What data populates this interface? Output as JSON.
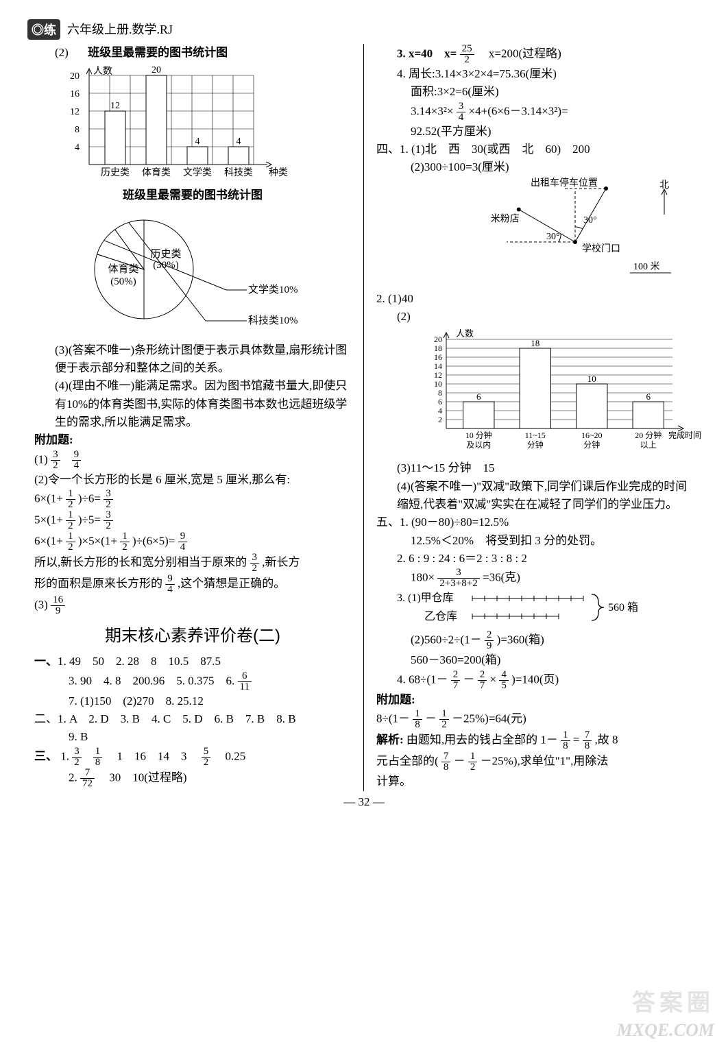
{
  "header": {
    "logo": "◎练",
    "title": "六年级上册.数学.RJ"
  },
  "left": {
    "q2_label": "(2)",
    "bar_chart": {
      "type": "bar",
      "title": "班级里最需要的图书统计图",
      "ylabel": "人数",
      "xlabel": "种类",
      "categories": [
        "历史类",
        "体育类",
        "文学类",
        "科技类"
      ],
      "values": [
        12,
        20,
        4,
        4
      ],
      "value_labels": [
        "12",
        "20",
        "4",
        "4"
      ],
      "yticks": [
        4,
        8,
        12,
        16,
        20
      ],
      "ylim": [
        0,
        20
      ],
      "bar_color": "#ffffff",
      "bar_border": "#000000",
      "grid_color": "#000000",
      "background_color": "#ffffff",
      "bar_width": 0.5,
      "fontsize": 14
    },
    "pie_chart": {
      "type": "pie",
      "title": "班级里最需要的图书统计图",
      "slices": [
        {
          "label": "体育类",
          "pct": 50,
          "display": "(50%)",
          "color": "#ffffff"
        },
        {
          "label": "历史类",
          "pct": 30,
          "display": "(30%)",
          "color": "#ffffff"
        },
        {
          "label": "文学类",
          "pct": 10,
          "display": "文学类10%",
          "color": "#ffffff"
        },
        {
          "label": "科技类",
          "pct": 10,
          "display": "科技类10%",
          "color": "#ffffff"
        }
      ],
      "border": "#000000",
      "fontsize": 15
    },
    "q3": "(3)(答案不唯一)条形统计图便于表示具体数量,扇形统计图便于表示部分和整体之间的关系。",
    "q4": "(4)(理由不唯一)能满足需求。因为图书馆藏书量大,即使只有10%的体育类图书,实际的体育类图书本数也远超班级学生的需求,所以能满足需求。",
    "extra_title": "附加题:",
    "extra1_prefix": "(1)",
    "extra1_f1": {
      "n": "3",
      "d": "2"
    },
    "extra1_f2": {
      "n": "9",
      "d": "4"
    },
    "extra2_intro": "(2)令一个长方形的长是 6 厘米,宽是 5 厘米,那么有:",
    "extra2_l1a": "6×(1+",
    "extra2_l1f": {
      "n": "1",
      "d": "2"
    },
    "extra2_l1b": ")÷6=",
    "extra2_l1r": {
      "n": "3",
      "d": "2"
    },
    "extra2_l2a": "5×(1+",
    "extra2_l2f": {
      "n": "1",
      "d": "2"
    },
    "extra2_l2b": ")÷5=",
    "extra2_l2r": {
      "n": "3",
      "d": "2"
    },
    "extra2_l3a": "6×(1+",
    "extra2_l3f1": {
      "n": "1",
      "d": "2"
    },
    "extra2_l3b": ")×5×(1+",
    "extra2_l3f2": {
      "n": "1",
      "d": "2"
    },
    "extra2_l3c": ")÷(6×5)=",
    "extra2_l3r": {
      "n": "9",
      "d": "4"
    },
    "extra2_c1a": "所以,新长方形的长和宽分别相当于原来的",
    "extra2_c1f": {
      "n": "3",
      "d": "2"
    },
    "extra2_c1b": ",新长方",
    "extra2_c2a": "形的面积是原来长方形的",
    "extra2_c2f": {
      "n": "9",
      "d": "4"
    },
    "extra2_c2b": ",这个猜想是正确的。",
    "extra3_prefix": "(3)",
    "extra3_f": {
      "n": "16",
      "d": "9"
    },
    "exam_title": "期末核心素养评价卷(二)",
    "sec1_label": "一、",
    "sec1_l1": "1. 49　50　2. 28　8　10.5　87.5",
    "sec1_l2a": "3. 90　4. 8　200.96　5. 0.375　6. ",
    "sec1_l2f": {
      "n": "6",
      "d": "11"
    },
    "sec1_l3": "7. (1)150　(2)270　8. 25.12",
    "sec2": "二、1. A　2. D　3. B　4. C　5. D　6. B　7. B　8. B",
    "sec2b": "9. B",
    "sec3_label": "三、",
    "sec3_1_prefix": "1. ",
    "sec3_1_f1": {
      "n": "3",
      "d": "2"
    },
    "sec3_1_f2": {
      "n": "1",
      "d": "8"
    },
    "sec3_1_mid": "　1　16　14　3　",
    "sec3_1_f3": {
      "n": "5",
      "d": "2"
    },
    "sec3_1_tail": "　0.25",
    "sec3_2_prefix": "2. ",
    "sec3_2_f": {
      "n": "7",
      "d": "72"
    },
    "sec3_2_tail": "　30　10(过程略)"
  },
  "right": {
    "q3a": "3. x=40　x=",
    "q3f": {
      "n": "25",
      "d": "2"
    },
    "q3b": "　x=200(过程略)",
    "q4l1": "4. 周长:3.14×3×2×4=75.36(厘米)",
    "q4l2": "面积:3×2=6(厘米)",
    "q4l3a": "3.14×3²×",
    "q4l3f": {
      "n": "3",
      "d": "4"
    },
    "q4l3b": "×4+(6×6－3.14×3²)=",
    "q4l4": "92.52(平方厘米)",
    "sec4_l1": "四、1. (1)北　西　30(或西　北　60)　200",
    "sec4_l2": "(2)300÷100=3(厘米)",
    "map": {
      "type": "diagram",
      "north_label": "北",
      "loc_taxi": "出租车停车位置",
      "loc_school": "学校门口",
      "loc_shop": "米粉店",
      "angle1": "30°",
      "angle2": "30°",
      "scale": "100 米",
      "line_color": "#000000",
      "dashed": true,
      "fontsize": 14
    },
    "q2_1": "2. (1)40",
    "q2_2label": "(2)",
    "bar_chart2": {
      "type": "bar",
      "ylabel": "人数",
      "xlabel": "完成时间",
      "categories": [
        "10 分钟及以内",
        "11~15 分钟",
        "16~20 分钟",
        "20 分钟以上"
      ],
      "values": [
        6,
        18,
        10,
        6
      ],
      "value_labels": [
        "6",
        "18",
        "10",
        "6"
      ],
      "yticks": [
        2,
        4,
        6,
        8,
        10,
        12,
        14,
        16,
        18,
        20
      ],
      "ylim": [
        0,
        20
      ],
      "bar_color": "#ffffff",
      "bar_border": "#000000",
      "grid_color": "#000000",
      "bar_width": 0.55,
      "fontsize": 13
    },
    "q3line": "(3)11～15 分钟　15",
    "q4text": "(4)(答案不唯一)\"双减\"政策下,同学们课后作业完成的时间缩短,代表着\"双减\"实实在在减轻了同学们的学业压力。",
    "sec5_l1": "五、1. (90－80)÷80=12.5%",
    "sec5_l1b": "12.5%＜20%　将受到扣 3 分的处罚。",
    "sec5_l2": "2. 6 : 9 : 24 : 6＝2 : 3 : 8 : 2",
    "sec5_l2b_a": "180×",
    "sec5_l2b_f": {
      "n": "3",
      "d": "2+3+8+2"
    },
    "sec5_l2b_b": "=36(克)",
    "sec5_3_1": "3. (1)甲仓库",
    "sec5_3_2": "乙仓库",
    "sec5_3_brace": "560 箱",
    "sec5_3_c_a": "(2)560÷2÷(1－",
    "sec5_3_c_f": {
      "n": "2",
      "d": "9"
    },
    "sec5_3_c_b": ")=360(箱)",
    "sec5_3_d": "560－360=200(箱)",
    "sec5_4_a": "4. 68÷(1－",
    "sec5_4_f1": {
      "n": "2",
      "d": "7"
    },
    "sec5_4_mid": "－",
    "sec5_4_f2": {
      "n": "2",
      "d": "7"
    },
    "sec5_4_x": "×",
    "sec5_4_f3": {
      "n": "4",
      "d": "5"
    },
    "sec5_4_b": ")=140(页)",
    "extra_title": "附加题:",
    "extra_a": "8÷(1－",
    "extra_f1": {
      "n": "1",
      "d": "8"
    },
    "extra_mid": "－",
    "extra_f2": {
      "n": "1",
      "d": "2"
    },
    "extra_b": "－25%)=64(元)",
    "analysis_label": "解析:",
    "an_a": "由题知,用去的钱占全部的 1－",
    "an_f1": {
      "n": "1",
      "d": "8"
    },
    "an_eq": "=",
    "an_f2": {
      "n": "7",
      "d": "8"
    },
    "an_b": ",故 8",
    "an2_a": "元占全部的(",
    "an2_f1": {
      "n": "7",
      "d": "8"
    },
    "an2_mid": "－",
    "an2_f2": {
      "n": "1",
      "d": "2"
    },
    "an2_b": "－25%),求单位\"1\",用除法",
    "an3": "计算。"
  },
  "pagenum": "— 32 —",
  "watermark": {
    "top": "答案圈",
    "bottom": "MXQE.COM"
  }
}
